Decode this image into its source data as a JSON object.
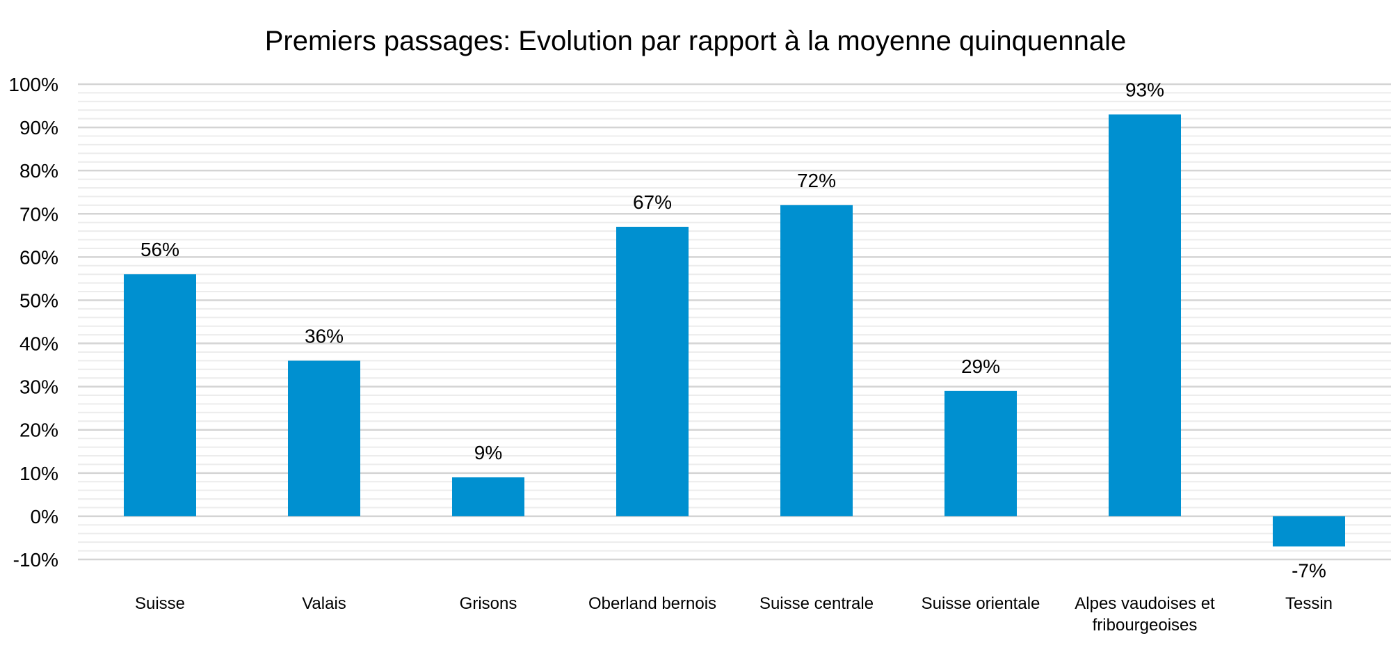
{
  "chart_data": {
    "type": "bar",
    "title": "Premiers passages: Evolution par rapport à la moyenne quinquennale",
    "xlabel": "",
    "ylabel": "",
    "ylim": [
      -10,
      100
    ],
    "y_tick_values": [
      -10,
      0,
      10,
      20,
      30,
      40,
      50,
      60,
      70,
      80,
      90,
      100
    ],
    "y_tick_labels": [
      "-10%",
      "0%",
      "10%",
      "20%",
      "30%",
      "40%",
      "50%",
      "60%",
      "70%",
      "80%",
      "90%",
      "100%"
    ],
    "grid": true,
    "minor_grid": true,
    "legend": "none",
    "bar_color": "#0090d0",
    "categories": [
      [
        "Suisse"
      ],
      [
        "Valais"
      ],
      [
        "Grisons"
      ],
      [
        "Oberland bernois"
      ],
      [
        "Suisse centrale"
      ],
      [
        "Suisse orientale"
      ],
      [
        "Alpes vaudoises et",
        "fribourgeoises"
      ],
      [
        "Tessin"
      ]
    ],
    "values": [
      56,
      36,
      9,
      67,
      72,
      29,
      93,
      -7
    ],
    "data_labels": [
      "56%",
      "36%",
      "9%",
      "67%",
      "72%",
      "29%",
      "93%",
      "-7%"
    ]
  }
}
